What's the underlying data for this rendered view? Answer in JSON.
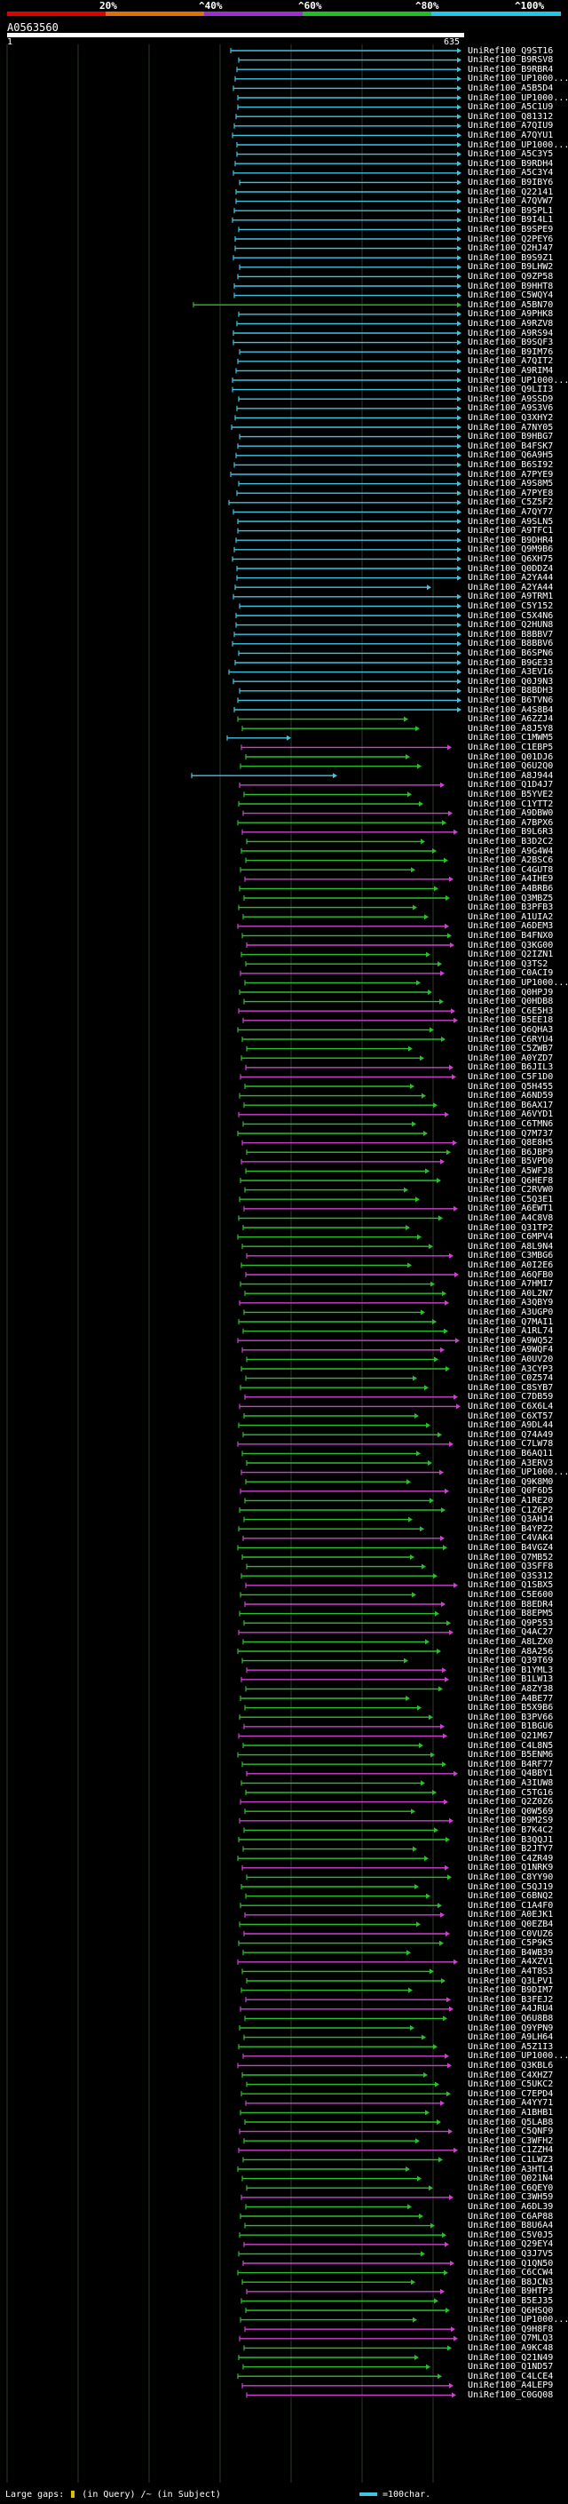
{
  "scale": {
    "labels": [
      "20%",
      "^40%",
      "^60%",
      "^80%",
      "^100%"
    ],
    "colors": [
      "#e00000",
      "#e07000",
      "#9a30d0",
      "#20c020",
      "#20c8e8"
    ]
  },
  "query": {
    "id": "A0563560",
    "start": "1",
    "end": "635"
  },
  "hit_colors": {
    "cyan": "#3fc5e0",
    "green": "#2bbf2b",
    "magenta": "#d040d0"
  },
  "hits": [
    "UniRef100_Q9ST16",
    "UniRef100_B9RSV8",
    "UniRef100_B9RBR4",
    "UniRef100_UP1000...",
    "UniRef100_A5B5D4",
    "UniRef100_UP1000...",
    "UniRef100_A5C1U9",
    "UniRef100_Q81312",
    "UniRef100_A7QIU9",
    "UniRef100_A7QYU1",
    "UniRef100_UP1000...",
    "UniRef100_A5C3Y5",
    "UniRef100_B9RDH4",
    "UniRef100_A5C3Y4",
    "UniRef100_B9IBY6",
    "UniRef100_Q22141",
    "UniRef100_A7QVW7",
    "UniRef100_B9SPL1",
    "UniRef100_B9I4L1",
    "UniRef100_B9SPE9",
    "UniRef100_Q2PEY6",
    "UniRef100_Q2HJ47",
    "UniRef100_B9S9Z1",
    "UniRef100_B9LHW2",
    "UniRef100_Q9ZP58",
    "UniRef100_B9HHT8",
    "UniRef100_C5WQY4",
    "UniRef100_A5BN70",
    "UniRef100_A9PHK8",
    "UniRef100_A9RZV8",
    "UniRef100_A9RS94",
    "UniRef100_B9SQF3",
    "UniRef100_B9IM76",
    "UniRef100_A7QIT2",
    "UniRef100_A9RIM4",
    "UniRef100_UP1000...",
    "UniRef100_Q9LII3",
    "UniRef100_A9SSD9",
    "UniRef100_A9S3V6",
    "UniRef100_Q3XHY2",
    "UniRef100_A7NY05",
    "UniRef100_B9HBG7",
    "UniRef100_B4FSK7",
    "UniRef100_Q6A9H5",
    "UniRef100_B6SI92",
    "UniRef100_A7PYE9",
    "UniRef100_A9S8M5",
    "UniRef100_A7PYE8",
    "UniRef100_C5Z5F2",
    "UniRef100_A7QY77",
    "UniRef100_A9SLN5",
    "UniRef100_A9TFC1",
    "UniRef100_B9DHR4",
    "UniRef100_Q9M9B6",
    "UniRef100_Q6XH75",
    "UniRef100_Q0DDZ4",
    "UniRef100_A2YA44",
    "UniRef100_A2YA44",
    "UniRef100_A9TRM1",
    "UniRef100_C5Y152",
    "UniRef100_C5X4N6",
    "UniRef100_Q2HUN8",
    "UniRef100_B8BBV7",
    "UniRef100_B8BBV6",
    "UniRef100_B6SPN6",
    "UniRef100_B9GE33",
    "UniRef100_A3EV16",
    "UniRef100_Q0J9N3",
    "UniRef100_B8BDH3",
    "UniRef100_B6TVN6",
    "UniRef100_A4S8B4",
    "UniRef100_A6ZZJ4",
    "UniRef100_A8J5Y8",
    "UniRef100_C1MWM5",
    "UniRef100_C1EBP5",
    "UniRef100_Q01DJ6",
    "UniRef100_Q6U2Q0",
    "UniRef100_A8J944",
    "UniRef100_Q1D4J7",
    "UniRef100_B5YVE2",
    "UniRef100_C1YTT2",
    "UniRef100_A9DBW0",
    "UniRef100_A7BPX6",
    "UniRef100_B9L6R3",
    "UniRef100_B3D2C2",
    "UniRef100_A9G4W4",
    "UniRef100_A2BSC6",
    "UniRef100_C4GUT8",
    "UniRef100_A4IHE9",
    "UniRef100_A4BRB6",
    "UniRef100_Q3MBZ5",
    "UniRef100_B3PFB3",
    "UniRef100_A1UIA2",
    "UniRef100_A6DEM3",
    "UniRef100_B4FNX0",
    "UniRef100_Q3KG00",
    "UniRef100_Q2IZN1",
    "UniRef100_Q3TS2",
    "UniRef100_C0ACI9",
    "UniRef100_UP1000...",
    "UniRef100_Q0HPJ9",
    "UniRef100_Q0HDB8",
    "UniRef100_C6E5H3",
    "UniRef100_B5EE18",
    "UniRef100_Q6QHA3",
    "UniRef100_C6RYU4",
    "UniRef100_C5ZWB7",
    "UniRef100_A0YZD7",
    "UniRef100_B6JIL3",
    "UniRef100_C5F1D0",
    "UniRef100_Q5H455",
    "UniRef100_A6ND59",
    "UniRef100_B6AX17",
    "UniRef100_A6VYD1",
    "UniRef100_C6TMN6",
    "UniRef100_Q7M737",
    "UniRef100_Q8E8H5",
    "UniRef100_B6JBP9",
    "UniRef100_B5VPD0",
    "UniRef100_A5WFJ8",
    "UniRef100_Q6HEF8",
    "UniRef100_C2RVW0",
    "UniRef100_C5Q3E1",
    "UniRef100_A6EWT1",
    "UniRef100_A4C8V8",
    "UniRef100_Q31TP2",
    "UniRef100_C6MPV4",
    "UniRef100_A8L9N4",
    "UniRef100_C3MBG6",
    "UniRef100_A0I2E6",
    "UniRef100_A6QFB0",
    "UniRef100_A7HMI7",
    "UniRef100_A0L2N7",
    "UniRef100_A3QBY9",
    "UniRef100_A3UGP0",
    "UniRef100_Q7MAI1",
    "UniRef100_A1RL74",
    "UniRef100_A9WQ52",
    "UniRef100_A9WQF4",
    "UniRef100_A0UV20",
    "UniRef100_A3CYP3",
    "UniRef100_C0Z574",
    "UniRef100_C8SYB7",
    "UniRef100_C7DB59",
    "UniRef100_C6X6L4",
    "UniRef100_C6XT57",
    "UniRef100_A9DL44",
    "UniRef100_Q74A49",
    "UniRef100_C7LW78",
    "UniRef100_B6AQ11",
    "UniRef100_A3ERV3",
    "UniRef100_UP1000...",
    "UniRef100_Q9K8M0",
    "UniRef100_Q0F6D5",
    "UniRef100_A1RE20",
    "UniRef100_C1Z6P2",
    "UniRef100_Q3AHJ4",
    "UniRef100_B4YPZ2",
    "UniRef100_C4VAK4",
    "UniRef100_B4VGZ4",
    "UniRef100_Q7MB52",
    "UniRef100_Q3SFF8",
    "UniRef100_Q3S312",
    "UniRef100_Q1SBX5",
    "UniRef100_C5E600",
    "UniRef100_B8EDR4",
    "UniRef100_B8EPM5",
    "UniRef100_Q9P553",
    "UniRef100_Q4AC27",
    "UniRef100_A8LZX0",
    "UniRef100_A8A256",
    "UniRef100_Q39T69",
    "UniRef100_B1YML3",
    "UniRef100_B1LW13",
    "UniRef100_A8ZY38",
    "UniRef100_A4BE77",
    "UniRef100_B5X9B6",
    "UniRef100_B3PV66",
    "UniRef100_B1BGU6",
    "UniRef100_Q21M67",
    "UniRef100_C4L8N5",
    "UniRef100_B5ENM6",
    "UniRef100_B4RF77",
    "UniRef100_Q4BBY1",
    "UniRef100_A3IUW8",
    "UniRef100_C5TG16",
    "UniRef100_Q2Z0Z6",
    "UniRef100_Q0W569",
    "UniRef100_B9M2S9",
    "UniRef100_B7K4C2",
    "UniRef100_B3QQJ1",
    "UniRef100_B2JTY7",
    "UniRef100_C4ZR49",
    "UniRef100_Q1NRK9",
    "UniRef100_C8YY90",
    "UniRef100_C5QJ19",
    "UniRef100_C6BNQ2",
    "UniRef100_C1A4F0",
    "UniRef100_A0EJK1",
    "UniRef100_Q0EZB4",
    "UniRef100_C0VUZ6",
    "UniRef100_C5P9K5",
    "UniRef100_B4WB39",
    "UniRef100_A4XZV1",
    "UniRef100_A4T8S3",
    "UniRef100_Q3LPV1",
    "UniRef100_B9DIM7",
    "UniRef100_B3FEJ2",
    "UniRef100_A4JRU4",
    "UniRef100_Q6U8B8",
    "UniRef100_Q9YPN9",
    "UniRef100_A9LH64",
    "UniRef100_A5Z1I3",
    "UniRef100_UP1000...",
    "UniRef100_Q3KBL6",
    "UniRef100_C4XHZ7",
    "UniRef100_C5UKC2",
    "UniRef100_C7EPD4",
    "UniRef100_A4YY71",
    "UniRef100_A1BHB1",
    "UniRef100_Q5LAB8",
    "UniRef100_C5QNF9",
    "UniRef100_C3WFH2",
    "UniRef100_C1ZZH4",
    "UniRef100_C1LWZ3",
    "UniRef100_A3HTL4",
    "UniRef100_Q021N4",
    "UniRef100_C6QEY0",
    "UniRef100_C3WH59",
    "UniRef100_A6DL39",
    "UniRef100_C6AP88",
    "UniRef100_B8U6A4",
    "UniRef100_C5V0J5",
    "UniRef100_Q29EY4",
    "UniRef100_Q3J7V5",
    "UniRef100_Q1QN50",
    "UniRef100_C6CCW4",
    "UniRef100_B8JCN3",
    "UniRef100_B9HTP3",
    "UniRef100_B5EJ35",
    "UniRef100_Q6HSQ0",
    "UniRef100_UP1000...",
    "UniRef100_Q9H8F8",
    "UniRef100_Q7MLQ3",
    "UniRef100_A9KC48",
    "UniRef100_Q21N49",
    "UniRef100_Q1ND57",
    "UniRef100_C4LCE4",
    "UniRef100_A4LEP9",
    "UniRef100_C0GQ08"
  ],
  "legend": {
    "large_gaps": "Large gaps:",
    "in_query": "(in Query)",
    "in_subject": "(in Subject)",
    "scale_note": "=100char."
  }
}
